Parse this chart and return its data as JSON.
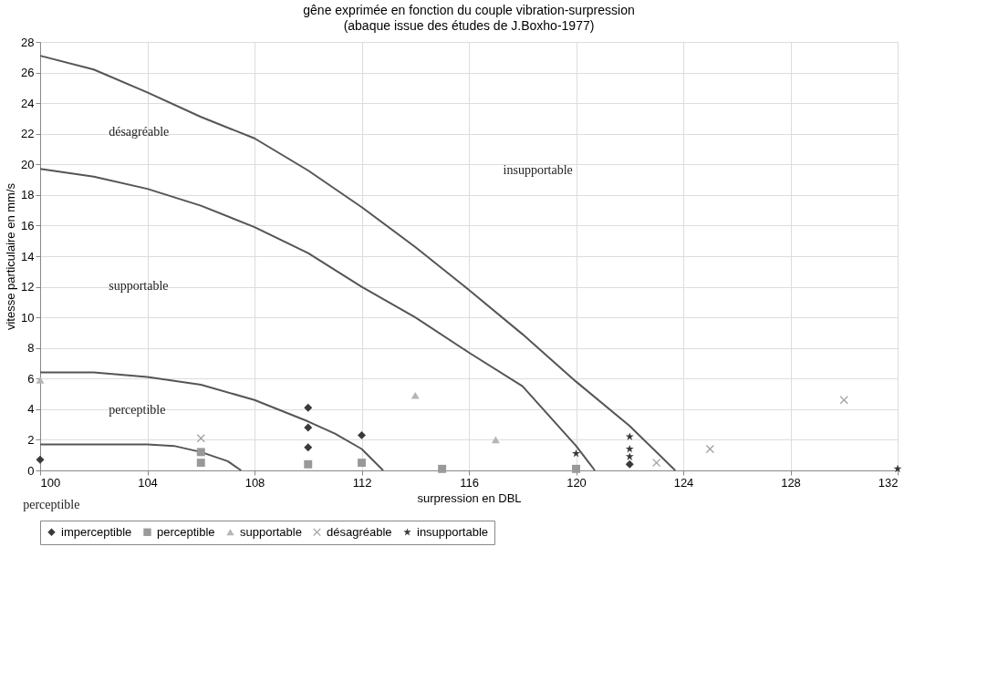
{
  "chart_data": {
    "type": "scatter",
    "title": "gêne exprimée en fonction du couple vibration-surpression",
    "subtitle": "(abaque issue des études de J.Boxho-1977)",
    "xlabel": "surpression en DBL",
    "ylabel": "vitesse particulaire en mm/s",
    "xlim": [
      100,
      132
    ],
    "xticks": [
      100,
      104,
      108,
      112,
      116,
      120,
      124,
      128,
      132
    ],
    "ylim": [
      0,
      28
    ],
    "yticks": [
      0,
      2,
      4,
      6,
      8,
      10,
      12,
      14,
      16,
      18,
      20,
      22,
      24,
      26,
      28
    ],
    "grid": true,
    "legend": "bottom",
    "series": [
      {
        "name": "imperceptible",
        "color": "#3a3a3a",
        "marker": "diamond",
        "x": [
          100,
          110,
          110,
          110,
          112,
          122
        ],
        "values": [
          0.7,
          4.1,
          2.8,
          1.5,
          2.3,
          0.4
        ]
      },
      {
        "name": "perceptible",
        "color": "#999999",
        "marker": "square",
        "x": [
          106,
          106,
          110,
          112,
          115,
          120
        ],
        "values": [
          0.5,
          1.2,
          0.4,
          0.5,
          0.1,
          0.1
        ]
      },
      {
        "name": "supportable",
        "color": "#b5b5b5",
        "marker": "triangle",
        "x": [
          100,
          114,
          117
        ],
        "values": [
          5.9,
          4.9,
          2.0
        ]
      },
      {
        "name": "désagréable",
        "color": "#a0a0a0",
        "marker": "cross",
        "x": [
          106,
          123,
          125,
          130
        ],
        "values": [
          2.1,
          0.5,
          1.4,
          4.6
        ]
      },
      {
        "name": "insupportable",
        "color": "#3a3a3a",
        "marker": "star",
        "x": [
          120,
          122,
          122,
          122,
          132
        ],
        "values": [
          1.1,
          2.2,
          1.4,
          0.9,
          0.1
        ]
      },
      {
        "type": "line",
        "color": "#555555",
        "x": [
          100,
          102,
          104,
          106,
          108,
          110,
          112,
          114,
          116,
          118,
          120,
          122,
          123.7
        ],
        "values": [
          27.1,
          26.2,
          24.7,
          23.1,
          21.7,
          19.6,
          17.2,
          14.6,
          11.8,
          8.9,
          5.8,
          2.9,
          0
        ]
      },
      {
        "type": "line",
        "color": "#555555",
        "x": [
          100,
          102,
          104,
          106,
          108,
          110,
          112,
          114,
          116,
          118,
          120,
          120.7
        ],
        "values": [
          19.7,
          19.2,
          18.4,
          17.3,
          15.9,
          14.2,
          12.0,
          10.0,
          7.7,
          5.5,
          1.6,
          0
        ]
      },
      {
        "type": "line",
        "color": "#555555",
        "x": [
          100,
          102,
          104,
          106,
          108,
          110,
          111,
          112,
          112.8
        ],
        "values": [
          6.4,
          6.4,
          6.1,
          5.6,
          4.6,
          3.2,
          2.4,
          1.4,
          0
        ]
      },
      {
        "type": "line",
        "color": "#555555",
        "x": [
          100,
          102,
          104,
          105,
          106,
          107,
          107.5
        ],
        "values": [
          1.7,
          1.7,
          1.7,
          1.6,
          1.2,
          0.6,
          0
        ]
      }
    ],
    "annotations": [
      "désagréable",
      "insupportable",
      "supportable",
      "perceptible",
      "perceptible"
    ]
  }
}
